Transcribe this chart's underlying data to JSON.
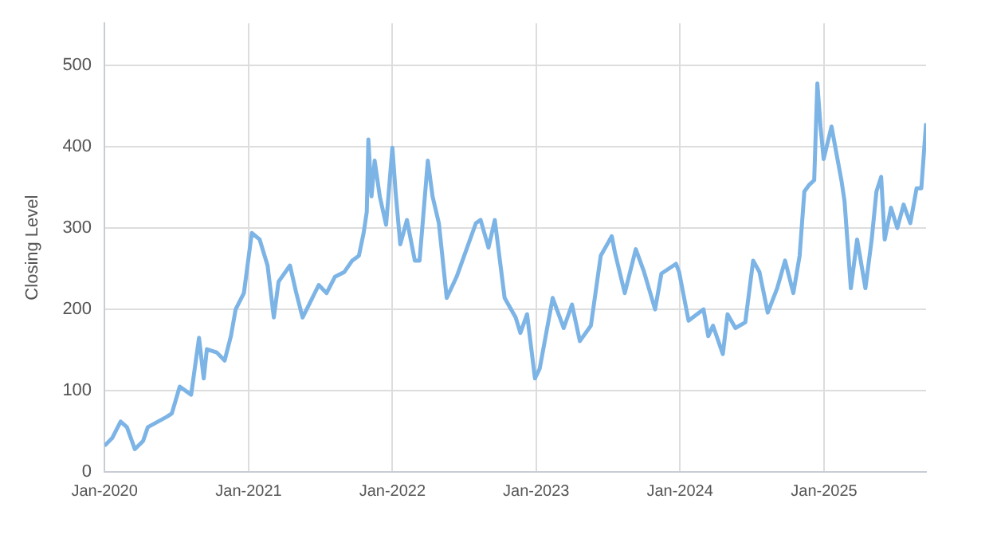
{
  "chart_data": {
    "type": "line",
    "ylabel": "Closing Level",
    "color": "#7db4e6",
    "grid": true,
    "legend": false,
    "marker": "none",
    "line_style": "solid",
    "ylim": [
      0,
      552
    ],
    "yticks": [
      0,
      100,
      200,
      300,
      400,
      500
    ],
    "xlim": [
      "2020-01-01",
      "2025-09-17"
    ],
    "xticks": [
      {
        "value": "2020-01",
        "label": "Jan-2020"
      },
      {
        "value": "2021-01",
        "label": "Jan-2021"
      },
      {
        "value": "2022-01",
        "label": "Jan-2022"
      },
      {
        "value": "2023-01",
        "label": "Jan-2023"
      },
      {
        "value": "2024-01",
        "label": "Jan-2024"
      },
      {
        "value": "2025-01",
        "label": "Jan-2025"
      }
    ],
    "x": [
      "2020-01-01",
      "2020-01-21",
      "2020-02-11",
      "2020-02-27",
      "2020-03-18",
      "2020-04-08",
      "2020-04-20",
      "2020-06-08",
      "2020-06-20",
      "2020-07-10",
      "2020-08-08",
      "2020-08-28",
      "2020-09-09",
      "2020-09-17",
      "2020-10-12",
      "2020-11-01",
      "2020-11-17",
      "2020-11-29",
      "2020-12-20",
      "2021-01-09",
      "2021-01-29",
      "2021-02-18",
      "2021-03-06",
      "2021-03-18",
      "2021-04-16",
      "2021-05-02",
      "2021-05-18",
      "2021-06-28",
      "2021-07-18",
      "2021-08-08",
      "2021-09-01",
      "2021-09-21",
      "2021-10-08",
      "2021-10-20",
      "2021-10-28",
      "2021-11-01",
      "2021-11-09",
      "2021-11-17",
      "2021-11-30",
      "2021-12-16",
      "2022-01-01",
      "2022-01-09",
      "2022-01-21",
      "2022-02-07",
      "2022-02-27",
      "2022-03-11",
      "2022-04-01",
      "2022-04-13",
      "2022-04-29",
      "2022-05-19",
      "2022-06-13",
      "2022-08-01",
      "2022-08-13",
      "2022-09-02",
      "2022-09-18",
      "2022-10-13",
      "2022-11-10",
      "2022-11-22",
      "2022-12-09",
      "2022-12-29",
      "2023-01-10",
      "2023-02-12",
      "2023-03-12",
      "2023-04-02",
      "2023-04-22",
      "2023-05-20",
      "2023-06-14",
      "2023-07-12",
      "2023-07-20",
      "2023-08-14",
      "2023-09-11",
      "2023-10-02",
      "2023-10-30",
      "2023-11-15",
      "2023-12-22",
      "2023-12-30",
      "2024-01-23",
      "2024-03-01",
      "2024-03-13",
      "2024-03-25",
      "2024-04-19",
      "2024-05-01",
      "2024-05-21",
      "2024-06-15",
      "2024-07-05",
      "2024-07-21",
      "2024-08-11",
      "2024-09-04",
      "2024-09-24",
      "2024-10-15",
      "2024-10-31",
      "2024-11-12",
      "2024-11-24",
      "2024-12-07",
      "2024-12-15",
      "2024-12-23",
      "2024-12-31",
      "2025-01-20",
      "2025-02-01",
      "2025-02-14",
      "2025-02-22",
      "2025-03-02",
      "2025-03-10",
      "2025-03-26",
      "2025-04-16",
      "2025-05-02",
      "2025-05-14",
      "2025-05-26",
      "2025-06-04",
      "2025-06-20",
      "2025-07-06",
      "2025-07-22",
      "2025-08-08",
      "2025-08-24",
      "2025-09-05",
      "2025-09-17"
    ],
    "values": [
      32,
      42,
      62,
      55,
      28,
      38,
      55,
      68,
      72,
      105,
      95,
      165,
      115,
      151,
      147,
      137,
      167,
      200,
      220,
      294,
      286,
      254,
      190,
      234,
      254,
      220,
      190,
      230,
      220,
      240,
      246,
      260,
      266,
      294,
      320,
      409,
      339,
      383,
      339,
      304,
      399,
      345,
      280,
      310,
      260,
      260,
      383,
      339,
      306,
      214,
      240,
      306,
      310,
      276,
      310,
      214,
      190,
      171,
      194,
      115,
      127,
      214,
      177,
      206,
      161,
      180,
      266,
      290,
      270,
      220,
      274,
      246,
      200,
      244,
      256,
      246,
      186,
      200,
      167,
      180,
      145,
      194,
      177,
      184,
      260,
      246,
      196,
      226,
      260,
      220,
      266,
      345,
      353,
      359,
      478,
      425,
      385,
      425,
      393,
      359,
      333,
      280,
      226,
      286,
      226,
      286,
      345,
      363,
      286,
      325,
      300,
      329,
      306,
      349,
      349,
      429
    ]
  }
}
